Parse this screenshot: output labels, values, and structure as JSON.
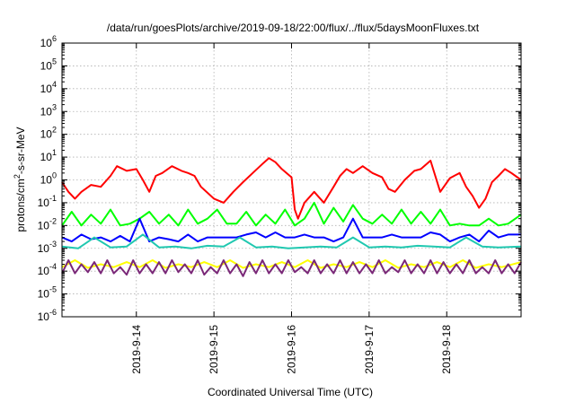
{
  "chart_data": {
    "type": "line",
    "title": "/data/run/goesPlots/archive/2019-09-18/22:00/flux/../flux/5daysMoonFluxes.txt",
    "xlabel": "Coordinated Universal Time (UTC)",
    "ylabel": "protons/cm2-s-sr-MeV",
    "ylabel_parts": {
      "base": "protons/cm",
      "sup": "2",
      "rest": "-s-sr-MeV"
    },
    "yscale": "log",
    "ylim": [
      1e-06,
      1000000.0
    ],
    "yticks": [
      {
        "base": "10",
        "exp": "-6",
        "value": 1e-06
      },
      {
        "base": "10",
        "exp": "-5",
        "value": 1e-05
      },
      {
        "base": "10",
        "exp": "-4",
        "value": 0.0001
      },
      {
        "base": "10",
        "exp": "-3",
        "value": 0.001
      },
      {
        "base": "10",
        "exp": "-2",
        "value": 0.01
      },
      {
        "base": "10",
        "exp": "-1",
        "value": 0.1
      },
      {
        "base": "10",
        "exp": "0",
        "value": 1
      },
      {
        "base": "10",
        "exp": "1",
        "value": 10
      },
      {
        "base": "10",
        "exp": "2",
        "value": 100
      },
      {
        "base": "10",
        "exp": "3",
        "value": 1000
      },
      {
        "base": "10",
        "exp": "4",
        "value": 10000
      },
      {
        "base": "10",
        "exp": "5",
        "value": 100000
      },
      {
        "base": "10",
        "exp": "6",
        "value": 1000000
      }
    ],
    "xlim": [
      "2019-09-13T01:00",
      "2019-09-18T23:00"
    ],
    "xticks": [
      {
        "label": "2019-9-14",
        "value": "2019-09-14T00:00"
      },
      {
        "label": "2019-9-15",
        "value": "2019-09-15T00:00"
      },
      {
        "label": "2019-9-16",
        "value": "2019-09-16T00:00"
      },
      {
        "label": "2019-9-17",
        "value": "2019-09-17T00:00"
      },
      {
        "label": "2019-9-18",
        "value": "2019-09-18T00:00"
      }
    ],
    "grid": true,
    "series": [
      {
        "color": "#ff0000",
        "x": [
          "2019-09-13T01:00",
          "2019-09-13T03:00",
          "2019-09-13T05:00",
          "2019-09-13T07:00",
          "2019-09-13T10:00",
          "2019-09-13T13:00",
          "2019-09-13T16:00",
          "2019-09-13T18:00",
          "2019-09-13T21:00",
          "2019-09-14T00:00",
          "2019-09-14T02:00",
          "2019-09-14T04:00",
          "2019-09-14T06:00",
          "2019-09-14T08:00",
          "2019-09-14T11:00",
          "2019-09-14T14:00",
          "2019-09-14T16:00",
          "2019-09-14T18:00",
          "2019-09-14T20:00",
          "2019-09-15T00:00",
          "2019-09-15T03:00",
          "2019-09-15T06:00",
          "2019-09-15T09:00",
          "2019-09-15T12:00",
          "2019-09-15T15:00",
          "2019-09-15T17:00",
          "2019-09-15T19:00",
          "2019-09-15T21:00",
          "2019-09-16T00:00",
          "2019-09-16T01:00",
          "2019-09-16T02:00",
          "2019-09-16T04:00",
          "2019-09-16T07:00",
          "2019-09-16T10:00",
          "2019-09-16T13:00",
          "2019-09-16T15:00",
          "2019-09-16T17:00",
          "2019-09-16T19:00",
          "2019-09-16T22:00",
          "2019-09-17T01:00",
          "2019-09-17T04:00",
          "2019-09-17T06:00",
          "2019-09-17T08:00",
          "2019-09-17T11:00",
          "2019-09-17T14:00",
          "2019-09-17T16:00",
          "2019-09-17T19:00",
          "2019-09-17T22:00",
          "2019-09-18T01:00",
          "2019-09-18T04:00",
          "2019-09-18T06:00",
          "2019-09-18T08:00",
          "2019-09-18T10:00",
          "2019-09-18T12:00",
          "2019-09-18T14:00",
          "2019-09-18T16:00",
          "2019-09-18T18:00",
          "2019-09-18T20:00",
          "2019-09-18T23:00"
        ],
        "y": [
          0.8,
          0.3,
          0.15,
          0.3,
          0.6,
          0.5,
          1.5,
          4,
          2.5,
          3,
          1,
          0.3,
          1.5,
          2,
          4,
          2.5,
          2,
          1.5,
          0.5,
          0.15,
          0.1,
          0.3,
          0.8,
          2,
          5,
          9,
          6,
          3,
          1.3,
          0.05,
          0.02,
          0.1,
          0.3,
          0.1,
          0.5,
          1.5,
          3,
          2,
          4,
          2,
          1.3,
          0.4,
          0.3,
          1,
          2.5,
          3,
          7,
          0.3,
          1.2,
          2,
          0.5,
          0.2,
          0.06,
          0.15,
          0.8,
          1.5,
          3,
          2,
          1
        ]
      },
      {
        "color": "#00ff00",
        "x": [
          "2019-09-13T01:00",
          "2019-09-13T04:00",
          "2019-09-13T07:00",
          "2019-09-13T10:00",
          "2019-09-13T13:00",
          "2019-09-13T16:00",
          "2019-09-13T19:00",
          "2019-09-13T22:00",
          "2019-09-14T01:00",
          "2019-09-14T04:00",
          "2019-09-14T07:00",
          "2019-09-14T10:00",
          "2019-09-14T13:00",
          "2019-09-14T16:00",
          "2019-09-14T19:00",
          "2019-09-14T22:00",
          "2019-09-15T01:00",
          "2019-09-15T04:00",
          "2019-09-15T07:00",
          "2019-09-15T10:00",
          "2019-09-15T13:00",
          "2019-09-15T16:00",
          "2019-09-15T19:00",
          "2019-09-15T22:00",
          "2019-09-16T01:00",
          "2019-09-16T04:00",
          "2019-09-16T07:00",
          "2019-09-16T10:00",
          "2019-09-16T13:00",
          "2019-09-16T16:00",
          "2019-09-16T19:00",
          "2019-09-16T22:00",
          "2019-09-17T01:00",
          "2019-09-17T04:00",
          "2019-09-17T07:00",
          "2019-09-17T10:00",
          "2019-09-17T13:00",
          "2019-09-17T16:00",
          "2019-09-17T19:00",
          "2019-09-17T22:00",
          "2019-09-18T01:00",
          "2019-09-18T04:00",
          "2019-09-18T07:00",
          "2019-09-18T10:00",
          "2019-09-18T13:00",
          "2019-09-18T16:00",
          "2019-09-18T19:00",
          "2019-09-18T23:00"
        ],
        "y": [
          0.01,
          0.04,
          0.01,
          0.03,
          0.012,
          0.05,
          0.01,
          0.012,
          0.02,
          0.04,
          0.012,
          0.03,
          0.01,
          0.05,
          0.012,
          0.02,
          0.05,
          0.012,
          0.012,
          0.04,
          0.01,
          0.03,
          0.012,
          0.05,
          0.01,
          0.02,
          0.1,
          0.012,
          0.06,
          0.015,
          0.08,
          0.02,
          0.012,
          0.03,
          0.012,
          0.05,
          0.012,
          0.04,
          0.012,
          0.05,
          0.01,
          0.012,
          0.01,
          0.01,
          0.02,
          0.01,
          0.012,
          0.03
        ]
      },
      {
        "color": "#0000ff",
        "x": [
          "2019-09-13T01:00",
          "2019-09-13T04:00",
          "2019-09-13T07:00",
          "2019-09-13T10:00",
          "2019-09-13T13:00",
          "2019-09-13T16:00",
          "2019-09-13T19:00",
          "2019-09-13T22:00",
          "2019-09-14T01:00",
          "2019-09-14T04:00",
          "2019-09-14T07:00",
          "2019-09-14T10:00",
          "2019-09-14T13:00",
          "2019-09-14T16:00",
          "2019-09-14T19:00",
          "2019-09-14T22:00",
          "2019-09-15T01:00",
          "2019-09-15T04:00",
          "2019-09-15T07:00",
          "2019-09-15T10:00",
          "2019-09-15T13:00",
          "2019-09-15T16:00",
          "2019-09-15T19:00",
          "2019-09-15T22:00",
          "2019-09-16T01:00",
          "2019-09-16T04:00",
          "2019-09-16T07:00",
          "2019-09-16T10:00",
          "2019-09-16T13:00",
          "2019-09-16T16:00",
          "2019-09-16T19:00",
          "2019-09-16T22:00",
          "2019-09-17T01:00",
          "2019-09-17T04:00",
          "2019-09-17T07:00",
          "2019-09-17T10:00",
          "2019-09-17T13:00",
          "2019-09-17T16:00",
          "2019-09-17T19:00",
          "2019-09-17T22:00",
          "2019-09-18T01:00",
          "2019-09-18T04:00",
          "2019-09-18T07:00",
          "2019-09-18T10:00",
          "2019-09-18T13:00",
          "2019-09-18T16:00",
          "2019-09-18T19:00",
          "2019-09-18T23:00"
        ],
        "y": [
          0.003,
          0.002,
          0.004,
          0.0025,
          0.003,
          0.002,
          0.0035,
          0.002,
          0.02,
          0.002,
          0.003,
          0.0025,
          0.002,
          0.004,
          0.002,
          0.003,
          0.003,
          0.003,
          0.003,
          0.004,
          0.005,
          0.003,
          0.005,
          0.003,
          0.003,
          0.004,
          0.003,
          0.003,
          0.002,
          0.003,
          0.02,
          0.003,
          0.003,
          0.003,
          0.004,
          0.003,
          0.003,
          0.003,
          0.005,
          0.004,
          0.002,
          0.003,
          0.004,
          0.002,
          0.006,
          0.003,
          0.004,
          0.004
        ]
      },
      {
        "color": "#20c8b0",
        "x": [
          "2019-09-13T01:00",
          "2019-09-13T06:00",
          "2019-09-13T11:00",
          "2019-09-13T16:00",
          "2019-09-13T21:00",
          "2019-09-14T02:00",
          "2019-09-14T07:00",
          "2019-09-14T12:00",
          "2019-09-14T17:00",
          "2019-09-14T22:00",
          "2019-09-15T03:00",
          "2019-09-15T08:00",
          "2019-09-15T13:00",
          "2019-09-15T18:00",
          "2019-09-15T23:00",
          "2019-09-16T04:00",
          "2019-09-16T09:00",
          "2019-09-16T14:00",
          "2019-09-16T19:00",
          "2019-09-17T00:00",
          "2019-09-17T05:00",
          "2019-09-17T10:00",
          "2019-09-17T15:00",
          "2019-09-17T20:00",
          "2019-09-18T01:00",
          "2019-09-18T06:00",
          "2019-09-18T11:00",
          "2019-09-18T16:00",
          "2019-09-18T23:00"
        ],
        "y": [
          0.0012,
          0.001,
          0.003,
          0.0011,
          0.0012,
          0.004,
          0.0011,
          0.0012,
          0.001,
          0.0013,
          0.0012,
          0.003,
          0.0011,
          0.0012,
          0.001,
          0.0011,
          0.0012,
          0.0011,
          0.003,
          0.0011,
          0.0012,
          0.0011,
          0.0013,
          0.0012,
          0.0011,
          0.003,
          0.0012,
          0.0011,
          0.0012
        ]
      },
      {
        "color": "#ffff00",
        "x": [
          "2019-09-13T01:00",
          "2019-09-13T05:00",
          "2019-09-13T09:00",
          "2019-09-13T13:00",
          "2019-09-13T17:00",
          "2019-09-13T21:00",
          "2019-09-14T01:00",
          "2019-09-14T05:00",
          "2019-09-14T09:00",
          "2019-09-14T13:00",
          "2019-09-14T17:00",
          "2019-09-14T21:00",
          "2019-09-15T01:00",
          "2019-09-15T05:00",
          "2019-09-15T09:00",
          "2019-09-15T13:00",
          "2019-09-15T17:00",
          "2019-09-15T21:00",
          "2019-09-16T01:00",
          "2019-09-16T05:00",
          "2019-09-16T09:00",
          "2019-09-16T13:00",
          "2019-09-16T17:00",
          "2019-09-16T21:00",
          "2019-09-17T01:00",
          "2019-09-17T05:00",
          "2019-09-17T09:00",
          "2019-09-17T13:00",
          "2019-09-17T17:00",
          "2019-09-17T21:00",
          "2019-09-18T01:00",
          "2019-09-18T05:00",
          "2019-09-18T09:00",
          "2019-09-18T13:00",
          "2019-09-18T17:00",
          "2019-09-18T23:00"
        ],
        "y": [
          0.00015,
          0.0003,
          0.00014,
          0.0002,
          0.00015,
          0.00025,
          0.00015,
          0.0003,
          0.00014,
          0.0002,
          0.00015,
          0.00025,
          0.00015,
          0.0003,
          0.00014,
          0.0002,
          0.00015,
          0.00025,
          0.00015,
          0.0003,
          0.00014,
          0.0002,
          0.00015,
          0.00025,
          0.00015,
          0.0003,
          0.00014,
          0.0002,
          0.00015,
          0.00025,
          0.00015,
          0.0003,
          0.00014,
          0.0002,
          0.00015,
          0.00025
        ]
      },
      {
        "color": "#7a2878",
        "x": [
          "2019-09-13T01:00",
          "2019-09-13T03:00",
          "2019-09-13T05:00",
          "2019-09-13T07:00",
          "2019-09-13T09:00",
          "2019-09-13T11:00",
          "2019-09-13T13:00",
          "2019-09-13T15:00",
          "2019-09-13T17:00",
          "2019-09-13T19:00",
          "2019-09-13T21:00",
          "2019-09-13T23:00",
          "2019-09-14T01:00",
          "2019-09-14T03:00",
          "2019-09-14T05:00",
          "2019-09-14T07:00",
          "2019-09-14T09:00",
          "2019-09-14T11:00",
          "2019-09-14T13:00",
          "2019-09-14T15:00",
          "2019-09-14T17:00",
          "2019-09-14T19:00",
          "2019-09-14T21:00",
          "2019-09-14T23:00",
          "2019-09-15T01:00",
          "2019-09-15T03:00",
          "2019-09-15T05:00",
          "2019-09-15T07:00",
          "2019-09-15T09:00",
          "2019-09-15T11:00",
          "2019-09-15T13:00",
          "2019-09-15T15:00",
          "2019-09-15T17:00",
          "2019-09-15T19:00",
          "2019-09-15T21:00",
          "2019-09-15T23:00",
          "2019-09-16T01:00",
          "2019-09-16T03:00",
          "2019-09-16T05:00",
          "2019-09-16T07:00",
          "2019-09-16T09:00",
          "2019-09-16T11:00",
          "2019-09-16T13:00",
          "2019-09-16T15:00",
          "2019-09-16T17:00",
          "2019-09-16T19:00",
          "2019-09-16T21:00",
          "2019-09-16T23:00",
          "2019-09-17T01:00",
          "2019-09-17T03:00",
          "2019-09-17T05:00",
          "2019-09-17T07:00",
          "2019-09-17T09:00",
          "2019-09-17T11:00",
          "2019-09-17T13:00",
          "2019-09-17T15:00",
          "2019-09-17T17:00",
          "2019-09-17T19:00",
          "2019-09-17T21:00",
          "2019-09-17T23:00",
          "2019-09-18T01:00",
          "2019-09-18T03:00",
          "2019-09-18T05:00",
          "2019-09-18T07:00",
          "2019-09-18T09:00",
          "2019-09-18T11:00",
          "2019-09-18T13:00",
          "2019-09-18T15:00",
          "2019-09-18T17:00",
          "2019-09-18T19:00",
          "2019-09-18T21:00",
          "2019-09-18T23:00"
        ],
        "y": [
          8e-05,
          0.0003,
          8e-05,
          0.0002,
          9e-05,
          0.00025,
          8e-05,
          0.0003,
          8e-05,
          0.00015,
          7e-05,
          0.0003,
          8e-05,
          0.0002,
          8e-05,
          0.00025,
          8e-05,
          0.0003,
          9e-05,
          0.0002,
          8e-05,
          0.0003,
          7e-05,
          0.00015,
          8e-05,
          0.0003,
          8e-05,
          0.0002,
          6e-05,
          0.00025,
          8e-05,
          0.0003,
          8e-05,
          0.0002,
          8e-05,
          0.0003,
          9e-05,
          0.00015,
          8e-05,
          0.0003,
          8e-05,
          0.0002,
          8e-05,
          0.0003,
          8e-05,
          0.00025,
          8e-05,
          0.0002,
          8e-05,
          0.0003,
          8e-05,
          0.00015,
          9e-05,
          0.0003,
          8e-05,
          0.0002,
          8e-05,
          0.0003,
          8e-05,
          0.00025,
          8e-05,
          0.0002,
          8e-05,
          0.0003,
          8e-05,
          0.00015,
          8e-05,
          0.0003,
          8e-05,
          0.0002,
          8e-05,
          0.00025
        ]
      }
    ]
  }
}
